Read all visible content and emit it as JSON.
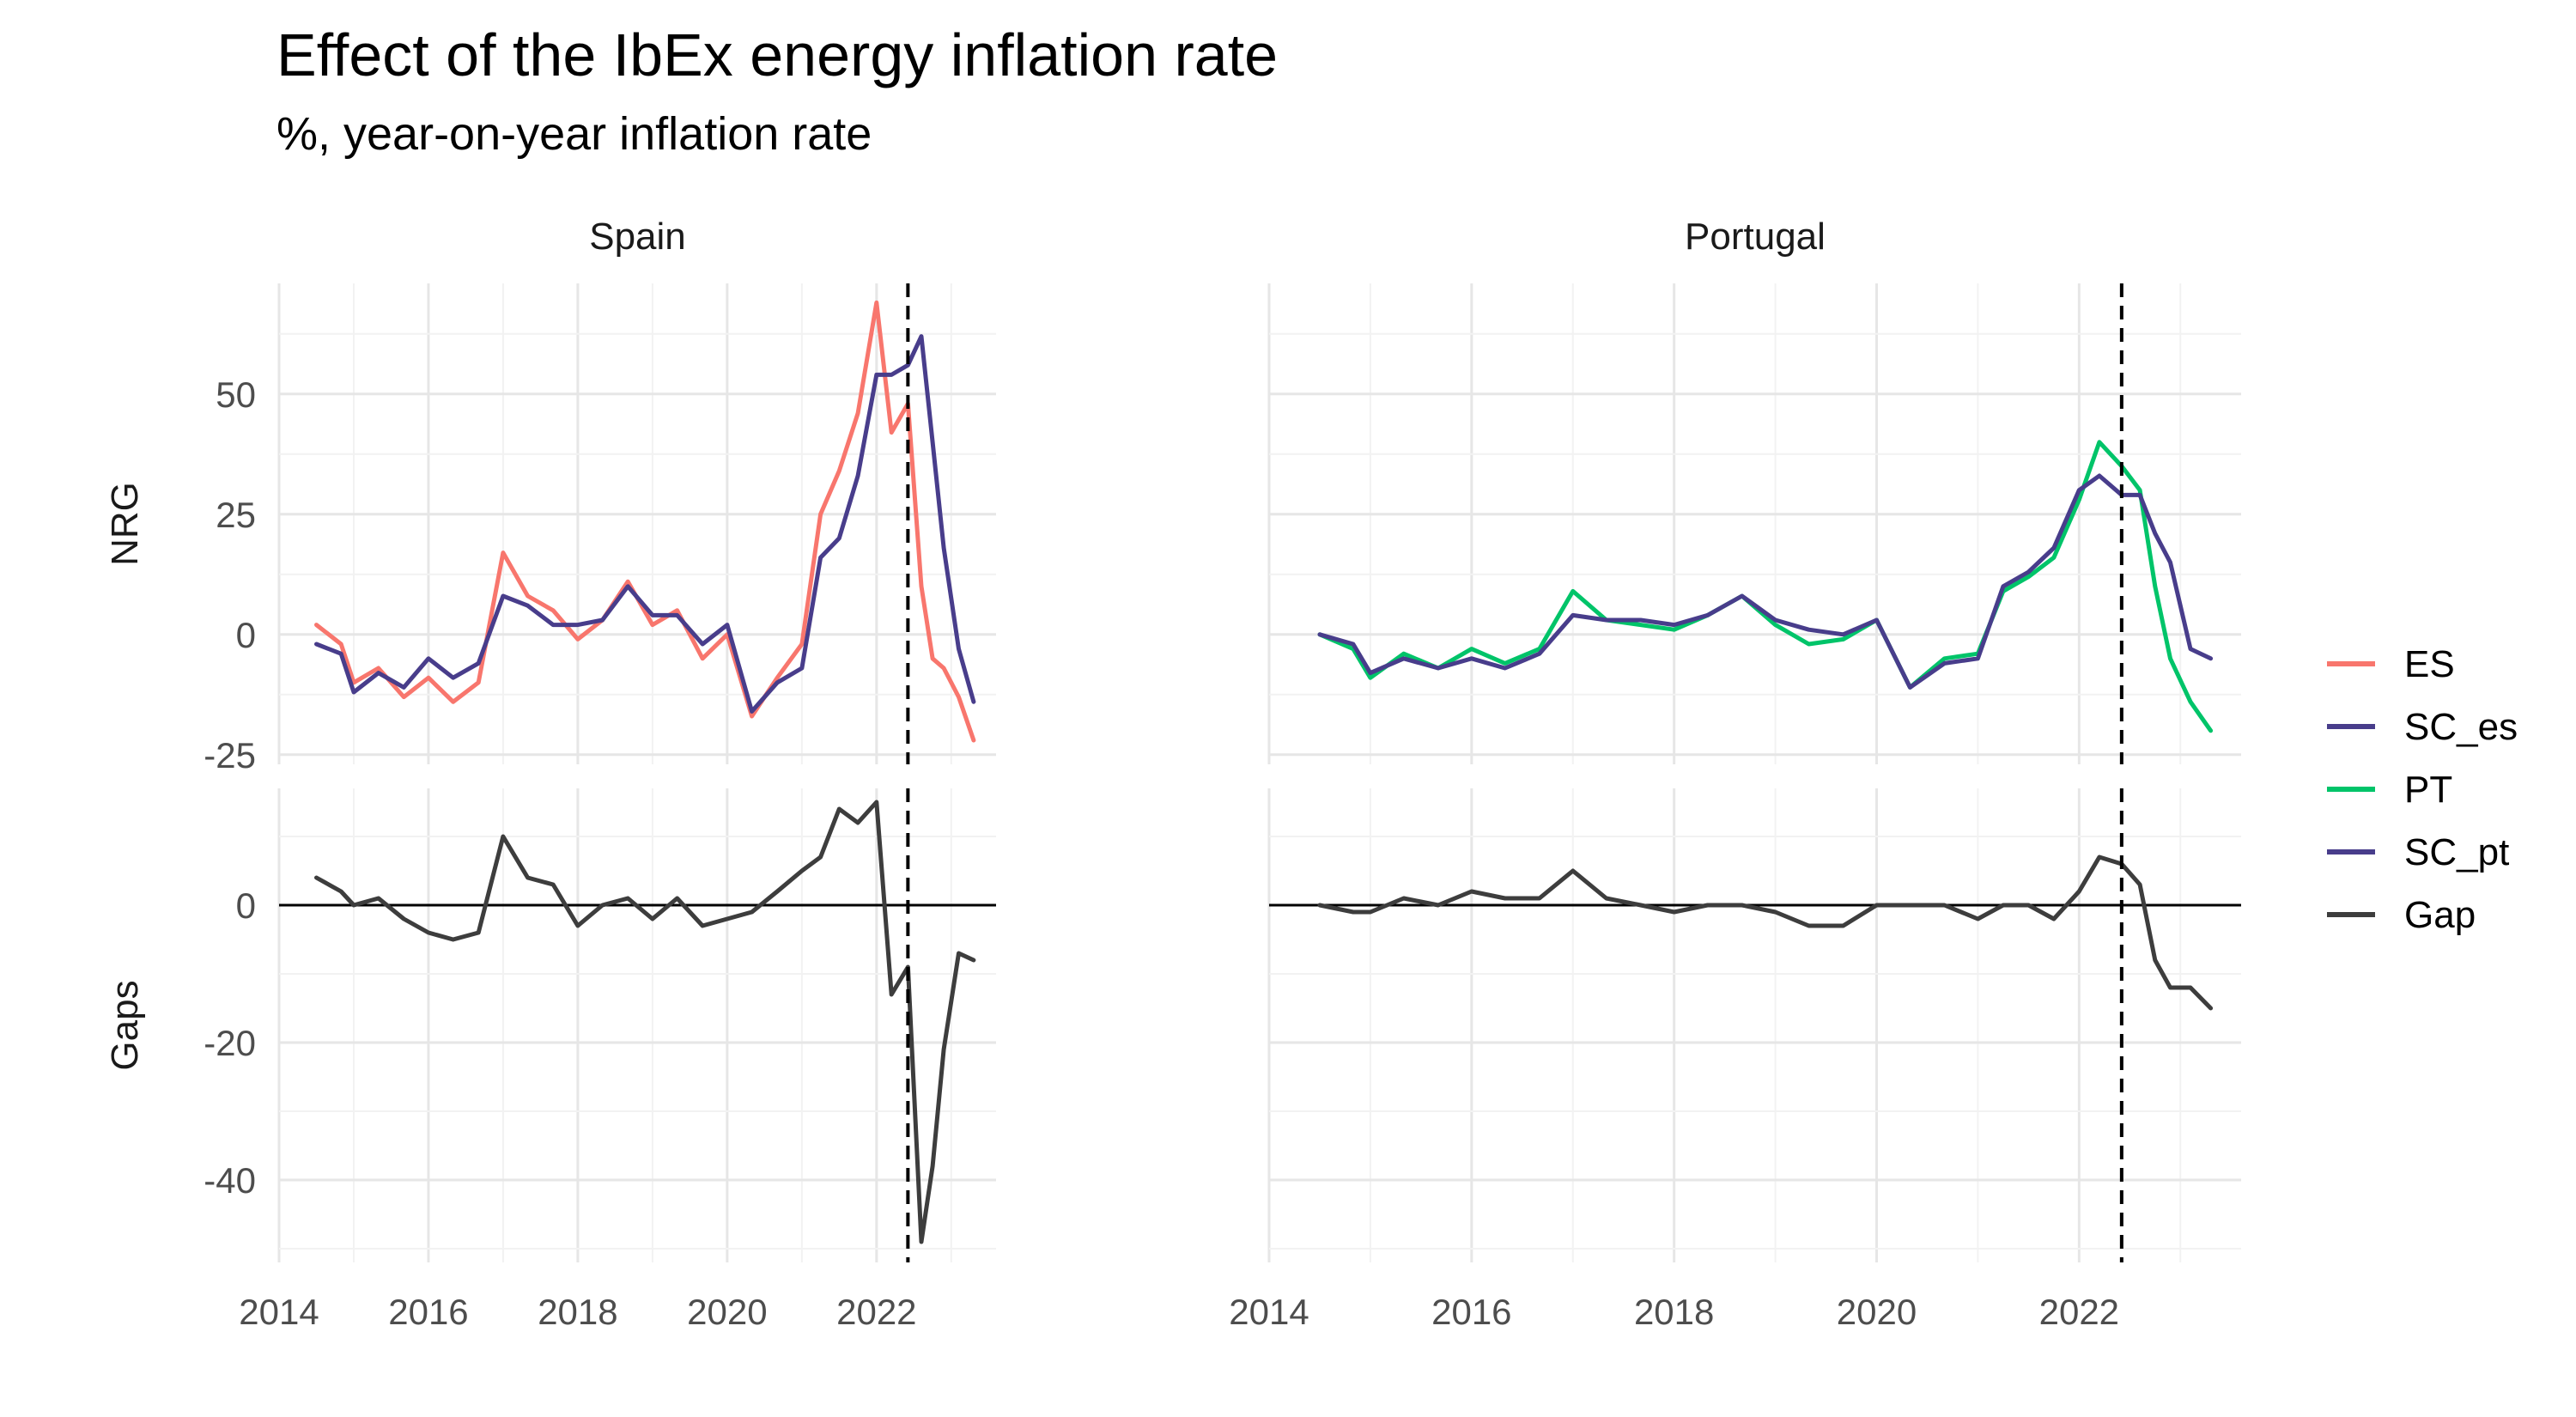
{
  "title": "Effect of the IbEx energy inflation rate",
  "subtitle": "%, year-on-year inflation rate",
  "chart_data": {
    "type": "line",
    "facets": {
      "columns": [
        "Spain",
        "Portugal"
      ],
      "rows": [
        "NRG",
        "Gaps"
      ]
    },
    "xlim": [
      2014,
      2023.6
    ],
    "x_ticks": [
      2014,
      2016,
      2018,
      2020,
      2022
    ],
    "x_tick_labels": [
      "2014",
      "2016",
      "2018",
      "2020",
      "2022"
    ],
    "rows": {
      "NRG": {
        "ylim": [
          -27,
          73
        ],
        "ticks": [
          -25,
          0,
          25,
          50
        ],
        "tick_labels": [
          "-25",
          "0",
          "25",
          "50"
        ]
      },
      "Gaps": {
        "ylim": [
          -52,
          17
        ],
        "ticks": [
          -40,
          -20,
          0
        ],
        "tick_labels": [
          "-40",
          "-20",
          "0"
        ]
      }
    },
    "vline_x": 2022.42,
    "hline_gaps": 0,
    "legend": {
      "position": "right",
      "entries": [
        {
          "name": "ES",
          "color": "#F8766D"
        },
        {
          "name": "SC_es",
          "color": "#483D8B"
        },
        {
          "name": "PT",
          "color": "#00C469"
        },
        {
          "name": "SC_pt",
          "color": "#483D8B"
        },
        {
          "name": "Gap",
          "color": "#3D3D3D"
        }
      ]
    },
    "x": [
      2014.5,
      2014.83,
      2015.0,
      2015.33,
      2015.67,
      2016.0,
      2016.33,
      2016.67,
      2017.0,
      2017.33,
      2017.67,
      2018.0,
      2018.33,
      2018.67,
      2019.0,
      2019.33,
      2019.67,
      2020.0,
      2020.33,
      2020.67,
      2021.0,
      2021.25,
      2021.5,
      2021.75,
      2022.0,
      2022.2,
      2022.42,
      2022.6,
      2022.75,
      2022.9,
      2023.1,
      2023.3
    ],
    "series": [
      {
        "name": "ES",
        "panel": "Spain",
        "row": "NRG",
        "values": [
          2,
          -2,
          -10,
          -7,
          -13,
          -9,
          -14,
          -10,
          17,
          8,
          5,
          -1,
          3,
          11,
          2,
          5,
          -5,
          0,
          -17,
          -9,
          -2,
          25,
          34,
          46,
          69,
          42,
          48,
          10,
          -5,
          -7,
          -13,
          -22
        ]
      },
      {
        "name": "SC_es",
        "panel": "Spain",
        "row": "NRG",
        "values": [
          -2,
          -4,
          -12,
          -8,
          -11,
          -5,
          -9,
          -6,
          8,
          6,
          2,
          2,
          3,
          10,
          4,
          4,
          -2,
          2,
          -16,
          -10,
          -7,
          16,
          20,
          33,
          54,
          54,
          56,
          62,
          40,
          18,
          -3,
          -14
        ]
      },
      {
        "name": "PT",
        "panel": "Portugal",
        "row": "NRG",
        "values": [
          0,
          -3,
          -9,
          -4,
          -7,
          -3,
          -6,
          -3,
          9,
          3,
          2,
          1,
          4,
          8,
          2,
          -2,
          -1,
          3,
          -11,
          -5,
          -4,
          9,
          12,
          16,
          28,
          40,
          35,
          30,
          10,
          -5,
          -14,
          -20
        ]
      },
      {
        "name": "SC_pt",
        "panel": "Portugal",
        "row": "NRG",
        "values": [
          0,
          -2,
          -8,
          -5,
          -7,
          -5,
          -7,
          -4,
          4,
          3,
          3,
          2,
          4,
          8,
          3,
          1,
          0,
          3,
          -11,
          -6,
          -5,
          10,
          13,
          18,
          30,
          33,
          29,
          29,
          21,
          15,
          -3,
          -5
        ]
      },
      {
        "name": "Gap",
        "panel": "Spain",
        "row": "Gaps",
        "values": [
          4,
          2,
          0,
          1,
          -2,
          -4,
          -5,
          -4,
          10,
          4,
          3,
          -3,
          0,
          1,
          -2,
          1,
          -3,
          -2,
          -1,
          2,
          5,
          7,
          14,
          12,
          15,
          -13,
          -9,
          -49,
          -38,
          -21,
          -7,
          -8
        ]
      },
      {
        "name": "Gap",
        "panel": "Portugal",
        "row": "Gaps",
        "values": [
          0,
          -1,
          -1,
          1,
          0,
          2,
          1,
          1,
          5,
          1,
          0,
          -1,
          0,
          0,
          -1,
          -3,
          -3,
          0,
          0,
          0,
          -2,
          0,
          0,
          -2,
          2,
          7,
          6,
          3,
          -8,
          -12,
          -12,
          -15
        ]
      }
    ]
  }
}
